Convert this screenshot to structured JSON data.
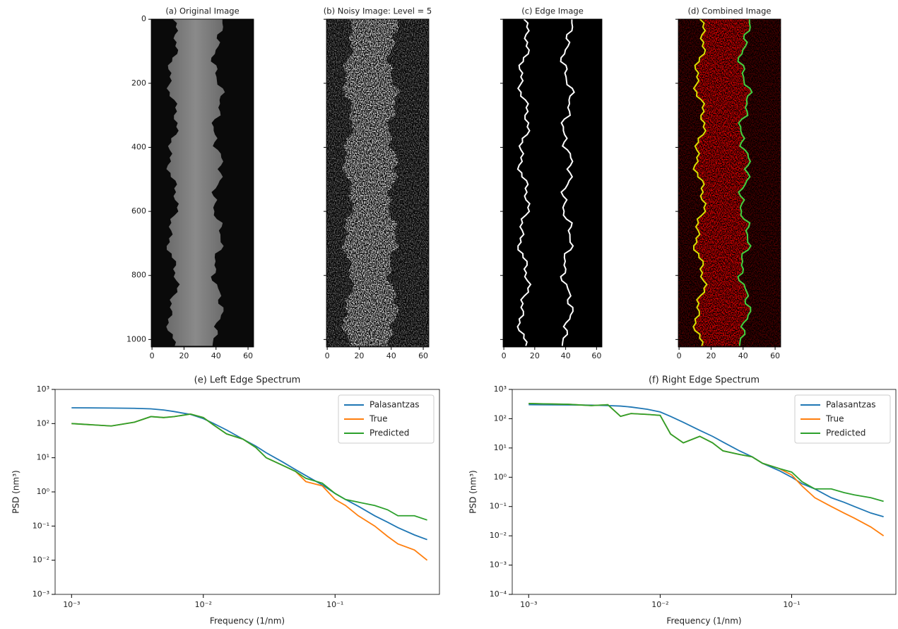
{
  "chart_data": [
    {
      "type": "image",
      "title": "(a) Original Image",
      "xlim": [
        -0.5,
        63.5
      ],
      "ylim": [
        1023.5,
        -0.5
      ],
      "xticks": [
        0,
        20,
        40,
        60
      ],
      "yticks": [
        0,
        200,
        400,
        600,
        800,
        1000
      ]
    },
    {
      "type": "image",
      "title": "(b) Noisy Image: Level = 5",
      "xlim": [
        -0.5,
        63.5
      ],
      "ylim": [
        1023.5,
        -0.5
      ],
      "xticks": [
        0,
        20,
        40,
        60
      ],
      "yticks": [
        0,
        200,
        400,
        600,
        800,
        1000
      ]
    },
    {
      "type": "image",
      "title": "(c) Edge Image",
      "xlim": [
        -0.5,
        63.5
      ],
      "ylim": [
        1023.5,
        -0.5
      ],
      "xticks": [
        0,
        20,
        40,
        60
      ],
      "yticks": [
        0,
        200,
        400,
        600,
        800,
        1000
      ]
    },
    {
      "type": "image",
      "title": "(d) Combined Image",
      "xlim": [
        -0.5,
        63.5
      ],
      "ylim": [
        1023.5,
        -0.5
      ],
      "xticks": [
        0,
        20,
        40,
        60
      ],
      "yticks": [
        0,
        200,
        400,
        600,
        800,
        1000
      ]
    },
    {
      "type": "line",
      "title": "(e) Left Edge Spectrum",
      "xlabel": "Frequency (1/nm)",
      "ylabel": "PSD (nm³)",
      "xscale": "log",
      "yscale": "log",
      "legend": "upper right",
      "xlim": [
        0.00075,
        0.62
      ],
      "ylim": [
        0.001,
        1000
      ],
      "xticks": [
        {
          "value": 0.001,
          "label": "10⁻³"
        },
        {
          "value": 0.01,
          "label": "10⁻²"
        },
        {
          "value": 0.1,
          "label": "10⁻¹"
        }
      ],
      "yticks": [
        {
          "value": 0.001,
          "label": "10⁻³"
        },
        {
          "value": 0.01,
          "label": "10⁻²"
        },
        {
          "value": 0.1,
          "label": "10⁻¹"
        },
        {
          "value": 1,
          "label": "10⁰"
        },
        {
          "value": 10,
          "label": "10¹"
        },
        {
          "value": 100,
          "label": "10²"
        },
        {
          "value": 1000,
          "label": "10³"
        }
      ],
      "x": [
        0.001,
        0.002,
        0.003,
        0.004,
        0.005,
        0.006,
        0.008,
        0.01,
        0.012,
        0.015,
        0.02,
        0.025,
        0.03,
        0.04,
        0.05,
        0.06,
        0.08,
        0.1,
        0.12,
        0.15,
        0.2,
        0.25,
        0.3,
        0.4,
        0.5
      ],
      "series": [
        {
          "name": "Palasantzas",
          "color": "#1f77b4",
          "values": [
            290,
            285,
            280,
            270,
            250,
            225,
            185,
            140,
            100,
            65,
            35,
            22,
            14,
            7.5,
            4.5,
            3,
            1.6,
            0.9,
            0.6,
            0.38,
            0.2,
            0.13,
            0.09,
            0.055,
            0.04
          ]
        },
        {
          "name": "True",
          "color": "#ff7f0e",
          "values": [
            100,
            85,
            110,
            160,
            150,
            160,
            190,
            150,
            90,
            50,
            35,
            20,
            10,
            6,
            4,
            2,
            1.5,
            0.6,
            0.4,
            0.2,
            0.1,
            0.05,
            0.03,
            0.02,
            0.01
          ]
        },
        {
          "name": "Predicted",
          "color": "#2ca02c",
          "values": [
            100,
            85,
            110,
            160,
            150,
            160,
            190,
            150,
            90,
            50,
            35,
            20,
            10,
            6,
            4,
            2.5,
            1.8,
            0.9,
            0.6,
            0.5,
            0.4,
            0.3,
            0.2,
            0.2,
            0.15
          ]
        }
      ]
    },
    {
      "type": "line",
      "title": "(f) Right Edge Spectrum",
      "xlabel": "Frequency (1/nm)",
      "ylabel": "PSD (nm³)",
      "xscale": "log",
      "yscale": "log",
      "legend": "upper right",
      "xlim": [
        0.00075,
        0.62
      ],
      "ylim": [
        0.0001,
        1000
      ],
      "xticks": [
        {
          "value": 0.001,
          "label": "10⁻³"
        },
        {
          "value": 0.01,
          "label": "10⁻²"
        },
        {
          "value": 0.1,
          "label": "10⁻¹"
        }
      ],
      "yticks": [
        {
          "value": 0.0001,
          "label": "10⁻⁴"
        },
        {
          "value": 0.001,
          "label": "10⁻³"
        },
        {
          "value": 0.01,
          "label": "10⁻²"
        },
        {
          "value": 0.1,
          "label": "10⁻¹"
        },
        {
          "value": 1,
          "label": "10⁰"
        },
        {
          "value": 10,
          "label": "10¹"
        },
        {
          "value": 100,
          "label": "10²"
        },
        {
          "value": 1000,
          "label": "10³"
        }
      ],
      "x": [
        0.001,
        0.002,
        0.003,
        0.004,
        0.005,
        0.006,
        0.008,
        0.01,
        0.012,
        0.015,
        0.02,
        0.025,
        0.03,
        0.04,
        0.05,
        0.06,
        0.08,
        0.1,
        0.12,
        0.15,
        0.2,
        0.25,
        0.3,
        0.4,
        0.5
      ],
      "series": [
        {
          "name": "Palasantzas",
          "color": "#1f77b4",
          "values": [
            300,
            295,
            290,
            280,
            270,
            250,
            210,
            170,
            120,
            75,
            40,
            25,
            16,
            8,
            5,
            3,
            1.7,
            1,
            0.6,
            0.4,
            0.2,
            0.14,
            0.1,
            0.06,
            0.045
          ]
        },
        {
          "name": "True",
          "color": "#ff7f0e",
          "values": [
            330,
            310,
            280,
            300,
            120,
            150,
            140,
            130,
            30,
            15,
            25,
            15,
            8,
            6,
            5,
            3,
            2,
            1.2,
            0.5,
            0.2,
            0.1,
            0.06,
            0.04,
            0.02,
            0.01
          ]
        },
        {
          "name": "Predicted",
          "color": "#2ca02c",
          "values": [
            330,
            310,
            280,
            300,
            120,
            150,
            140,
            130,
            30,
            15,
            25,
            15,
            8,
            6,
            5,
            3,
            2,
            1.5,
            0.7,
            0.4,
            0.4,
            0.3,
            0.25,
            0.2,
            0.15
          ]
        }
      ]
    }
  ]
}
